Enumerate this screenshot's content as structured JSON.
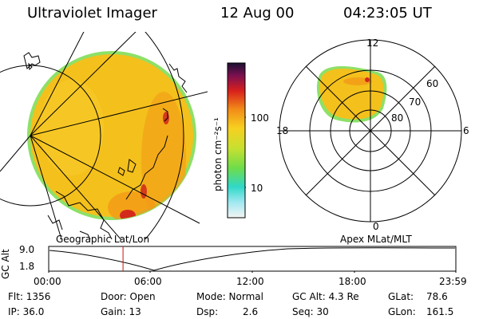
{
  "header": {
    "title": "Ultraviolet Imager",
    "date": "12 Aug 00",
    "time": "04:23:05 UT"
  },
  "colorbar": {
    "unit_label": "photon cm⁻²s⁻¹",
    "ticks": [
      "100",
      "10"
    ]
  },
  "polar_plot": {
    "mlt_labels": {
      "top": "12",
      "right": "6",
      "bottom": "0",
      "left": "18"
    },
    "lat_labels": [
      "60",
      "70",
      "80"
    ]
  },
  "panel_labels": {
    "left": "Geographic Lat/Lon",
    "right": "Apex MLat/MLT"
  },
  "altitude_plot": {
    "ylabel": "GC Alt",
    "yticks": [
      "9.0",
      "1.8"
    ],
    "xticks": [
      "00:00",
      "06:00",
      "12:00",
      "18:00",
      "23:59"
    ],
    "marker_time_hours": 4.38
  },
  "info": {
    "flt": "Flt: 1356",
    "ip": "IP: 36.0",
    "door": "Door: Open",
    "gain": "Gain: 13",
    "mode": "Mode: Normal",
    "dsp_label": "Dsp:",
    "dsp_value": "2.6",
    "gc_alt": "GC Alt: 4.3 Re",
    "seq": "Seq: 30",
    "glat_label": "GLat:",
    "glat_value": "78.6",
    "glon_label": "GLon:",
    "glon_value": "161.5"
  },
  "colors": {
    "disk_fill": "#f4c01c",
    "disk_edge": "#9ee05a",
    "aurora": "#f2a818",
    "hot": "#d42a1c"
  }
}
